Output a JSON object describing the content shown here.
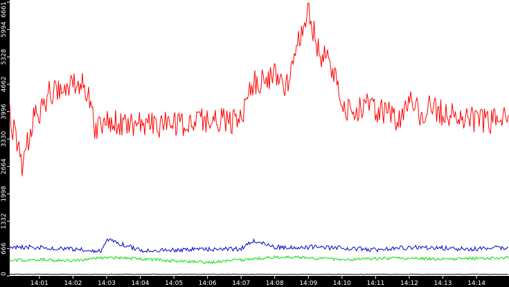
{
  "chart_data": {
    "type": "line",
    "title": "",
    "xlabel": "",
    "ylabel": "",
    "x_ticks": [
      "14:01",
      "14:02",
      "14:03",
      "14:04",
      "14:05",
      "14:06",
      "14:07",
      "14:08",
      "14:09",
      "14:10",
      "14:11",
      "14:12",
      "14:13",
      "14:14"
    ],
    "y_ticks": [
      "0",
      "666",
      "1332",
      "1998",
      "2664",
      "3330",
      "3996",
      "4662",
      "5328",
      "5994",
      "6661"
    ],
    "ylim": [
      0,
      6661
    ],
    "xlim": [
      "14:00:07",
      "14:14:58"
    ],
    "grid": false,
    "legend": "none",
    "series": [
      {
        "color": "#ff0000",
        "x": [
          "14:00:07",
          "14:00:30",
          "14:00:50",
          "14:01:00",
          "14:01:20",
          "14:01:40",
          "14:02:00",
          "14:02:20",
          "14:02:40",
          "14:03:00",
          "14:03:20",
          "14:03:40",
          "14:04:00",
          "14:04:20",
          "14:04:40",
          "14:05:00",
          "14:05:20",
          "14:05:40",
          "14:06:00",
          "14:06:20",
          "14:06:40",
          "14:07:00",
          "14:07:20",
          "14:07:40",
          "14:08:00",
          "14:08:20",
          "14:08:40",
          "14:09:00",
          "14:09:20",
          "14:09:40",
          "14:10:00",
          "14:10:20",
          "14:10:40",
          "14:11:00",
          "14:11:20",
          "14:11:40",
          "14:12:00",
          "14:12:20",
          "14:12:40",
          "14:13:00",
          "14:13:20",
          "14:13:40",
          "14:14:00",
          "14:14:20",
          "14:14:40",
          "14:14:58"
        ],
        "values": [
          3900,
          2700,
          3950,
          4000,
          4500,
          4450,
          4700,
          4750,
          3600,
          3850,
          3700,
          3650,
          3750,
          3700,
          3650,
          3750,
          3600,
          3850,
          3750,
          3800,
          3700,
          3900,
          4700,
          4800,
          4900,
          4600,
          5600,
          6400,
          5400,
          5200,
          4100,
          4000,
          4150,
          4050,
          3950,
          3800,
          4300,
          3900,
          4150,
          3950,
          3900,
          3850,
          3800,
          3750,
          3850,
          3900
        ]
      },
      {
        "color": "#0000cc",
        "x": [
          "14:00:07",
          "14:01:00",
          "14:02:00",
          "14:02:50",
          "14:03:00",
          "14:04:00",
          "14:05:00",
          "14:06:00",
          "14:07:00",
          "14:07:20",
          "14:08:00",
          "14:09:00",
          "14:10:00",
          "14:11:00",
          "14:12:00",
          "14:13:00",
          "14:14:00",
          "14:14:58"
        ],
        "values": [
          700,
          700,
          650,
          600,
          900,
          620,
          630,
          650,
          660,
          850,
          700,
          700,
          680,
          640,
          690,
          680,
          650,
          700
        ]
      },
      {
        "color": "#00dd00",
        "x": [
          "14:00:07",
          "14:01:00",
          "14:02:00",
          "14:03:00",
          "14:04:00",
          "14:05:00",
          "14:06:00",
          "14:07:00",
          "14:08:00",
          "14:09:00",
          "14:10:00",
          "14:11:00",
          "14:12:00",
          "14:13:00",
          "14:14:00",
          "14:14:58"
        ],
        "values": [
          380,
          400,
          370,
          450,
          420,
          360,
          330,
          390,
          460,
          440,
          400,
          420,
          430,
          410,
          430,
          440
        ]
      },
      {
        "color": "#000000",
        "x": [
          "14:00:07",
          "14:14:58"
        ],
        "values": [
          40,
          40
        ]
      }
    ]
  }
}
